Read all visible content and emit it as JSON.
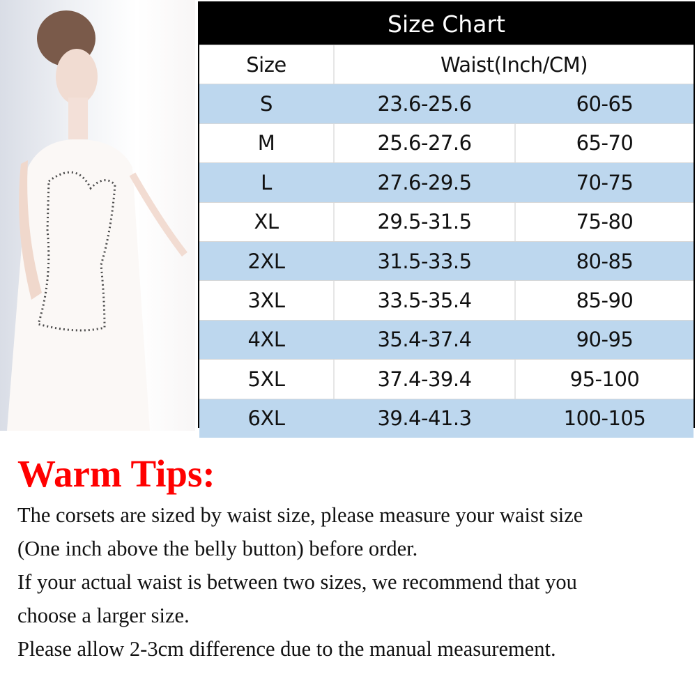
{
  "size_chart": {
    "title": "Size Chart",
    "headers": {
      "size": "Size",
      "waist": "Waist(Inch/CM)"
    },
    "rows": [
      {
        "size": "S",
        "inch": "23.6-25.6",
        "cm": "60-65"
      },
      {
        "size": "M",
        "inch": "25.6-27.6",
        "cm": "65-70"
      },
      {
        "size": "L",
        "inch": "27.6-29.5",
        "cm": "70-75"
      },
      {
        "size": "XL",
        "inch": "29.5-31.5",
        "cm": "75-80"
      },
      {
        "size": "2XL",
        "inch": "31.5-33.5",
        "cm": "80-85"
      },
      {
        "size": "3XL",
        "inch": "33.5-35.4",
        "cm": "85-90"
      },
      {
        "size": "4XL",
        "inch": "35.4-37.4",
        "cm": "90-95"
      },
      {
        "size": "5XL",
        "inch": "37.4-39.4",
        "cm": "95-100"
      },
      {
        "size": "6XL",
        "inch": "39.4-41.3",
        "cm": "100-105"
      }
    ],
    "colors": {
      "header_bg": "#000000",
      "stripe": "#bdd7ee"
    }
  },
  "tips": {
    "title": "Warm Tips:",
    "title_color": "#ff0000",
    "lines": [
      "The corsets are sized by waist size, please measure your waist size",
      "(One inch above the belly button) before order.",
      "If your actual waist is between two sizes, we recommend that you",
      "choose a larger size.",
      "Please allow 2-3cm difference due to the manual measurement."
    ]
  }
}
